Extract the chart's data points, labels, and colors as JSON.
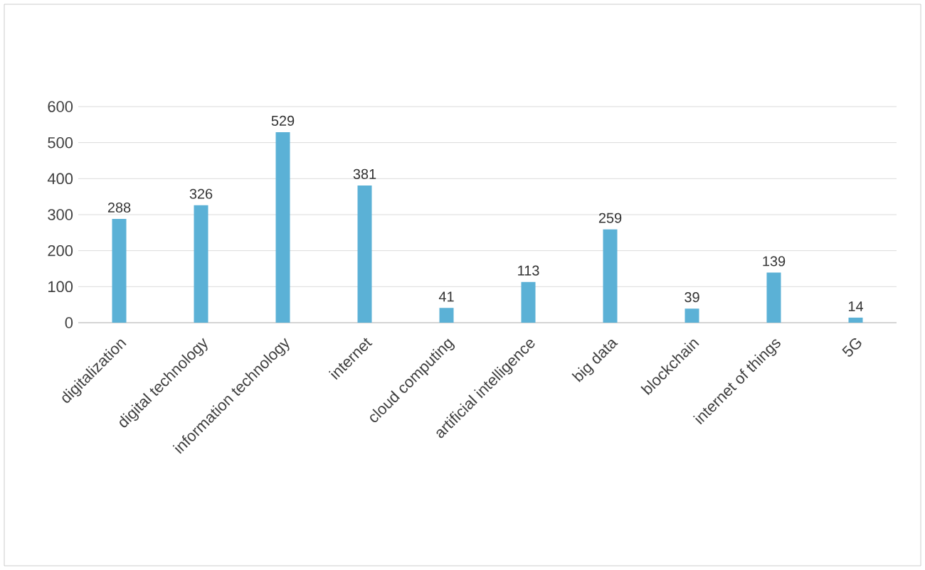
{
  "chart_data": {
    "type": "bar",
    "categories": [
      "digitalization",
      "digital technology",
      "information technology",
      "internet",
      "cloud computing",
      "artificial intelligence",
      "big data",
      "blockchain",
      "internet of things",
      "5G"
    ],
    "values": [
      288,
      326,
      529,
      381,
      41,
      113,
      259,
      39,
      139,
      14
    ],
    "color": "#5bb1d6",
    "ylim": [
      0,
      600
    ],
    "yticks": [
      0,
      100,
      200,
      300,
      400,
      500,
      600
    ],
    "grid": "y",
    "data_labels": true
  }
}
